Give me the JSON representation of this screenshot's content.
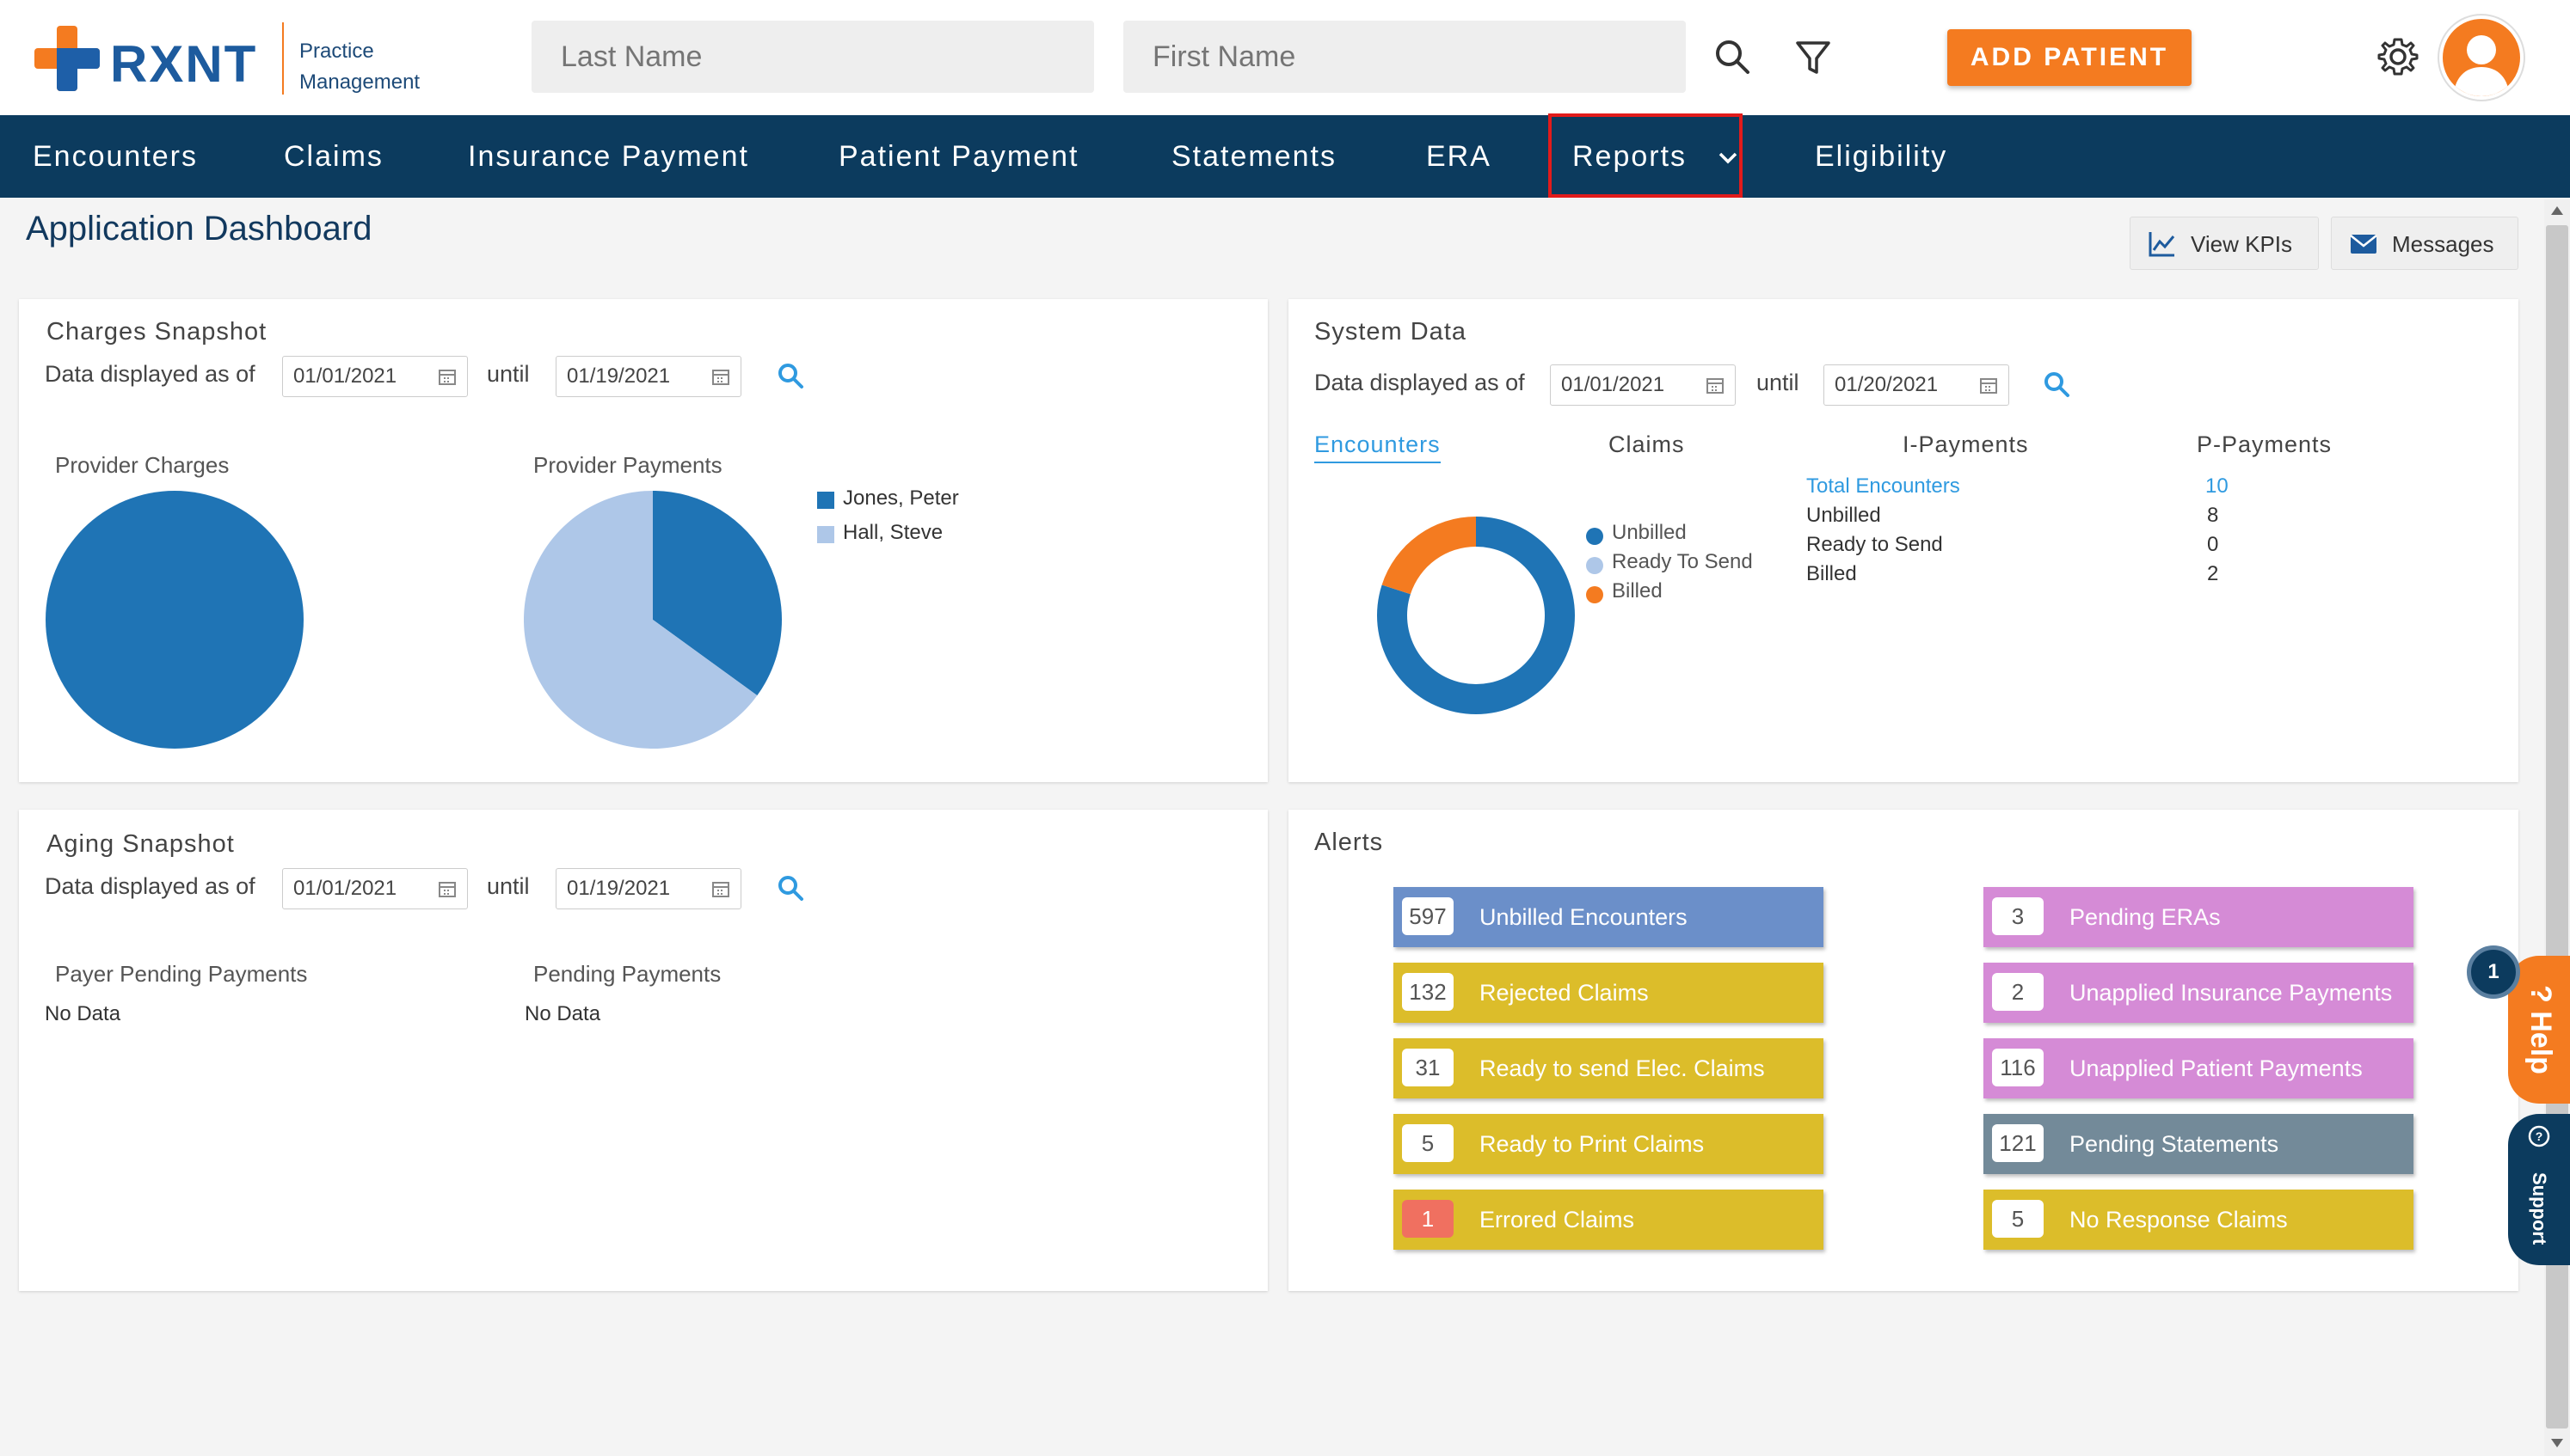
{
  "app": {
    "brand": "RXNT",
    "subtitle_line1": "Practice",
    "subtitle_line2": "Management"
  },
  "header": {
    "last_name_placeholder": "Last Name",
    "first_name_placeholder": "First Name",
    "add_patient_label": "ADD PATIENT"
  },
  "nav": {
    "items": [
      "Encounters",
      "Claims",
      "Insurance Payment",
      "Patient Payment",
      "Statements",
      "ERA",
      "Reports",
      "Eligibility"
    ]
  },
  "page": {
    "title": "Application Dashboard",
    "view_kpis_label": "View KPIs",
    "messages_label": "Messages"
  },
  "charges": {
    "title": "Charges Snapshot",
    "data_as_of": "Data displayed as of",
    "from": "01/01/2021",
    "until": "until",
    "to": "01/19/2021",
    "provider_charges": "Provider Charges",
    "provider_payments": "Provider Payments"
  },
  "system": {
    "title": "System Data",
    "data_as_of": "Data displayed as of",
    "from": "01/01/2021",
    "until": "until",
    "to": "01/20/2021",
    "tabs": [
      "Encounters",
      "Claims",
      "I-Payments",
      "P-Payments"
    ],
    "legend": [
      "Unbilled",
      "Ready To Send",
      "Billed"
    ],
    "stats": [
      {
        "label": "Total Encounters",
        "value": "10"
      },
      {
        "label": "Unbilled",
        "value": "8"
      },
      {
        "label": "Ready to Send",
        "value": "0"
      },
      {
        "label": "Billed",
        "value": "2"
      }
    ]
  },
  "aging": {
    "title": "Aging Snapshot",
    "data_as_of": "Data displayed as of",
    "from": "01/01/2021",
    "until": "until",
    "to": "01/19/2021",
    "payer_pending": "Payer Pending Payments",
    "pending": "Pending Payments",
    "no_data": "No Data"
  },
  "alerts": {
    "title": "Alerts",
    "left": [
      {
        "count": "597",
        "label": "Unbilled Encounters",
        "color": "#6b8fc9"
      },
      {
        "count": "132",
        "label": "Rejected Claims",
        "color": "#dcbd2a"
      },
      {
        "count": "31",
        "label": "Ready to send Elec. Claims",
        "color": "#dcbd2a"
      },
      {
        "count": "5",
        "label": "Ready to Print Claims",
        "color": "#dcbd2a"
      },
      {
        "count": "1",
        "label": "Errored Claims",
        "color": "#dcbd2a"
      }
    ],
    "right": [
      {
        "count": "3",
        "label": "Pending ERAs",
        "color": "#d58bd6"
      },
      {
        "count": "2",
        "label": "Unapplied Insurance Payments",
        "color": "#d58bd6"
      },
      {
        "count": "116",
        "label": "Unapplied Patient Payments",
        "color": "#d58bd6"
      },
      {
        "count": "121",
        "label": "Pending Statements",
        "color": "#738a99"
      },
      {
        "count": "5",
        "label": "No Response Claims",
        "color": "#dcbd2a"
      }
    ]
  },
  "side": {
    "help": "Help",
    "support": "Support",
    "badge": "1"
  },
  "chart_data": [
    {
      "type": "pie",
      "title": "Provider Charges",
      "series": [
        {
          "name": "Jones, Peter",
          "values": [
            100
          ]
        }
      ],
      "colors": [
        "#1f74b5"
      ]
    },
    {
      "type": "pie",
      "title": "Provider Payments",
      "categories": [
        "Jones, Peter",
        "Hall, Steve"
      ],
      "values": [
        35,
        65
      ],
      "colors": [
        "#1f74b5",
        "#aec7e8"
      ]
    },
    {
      "type": "pie",
      "title": "Encounters",
      "categories": [
        "Unbilled",
        "Ready To Send",
        "Billed"
      ],
      "values": [
        8,
        0,
        2
      ],
      "colors": [
        "#1f74b5",
        "#aec7e8",
        "#f47b20"
      ]
    }
  ]
}
